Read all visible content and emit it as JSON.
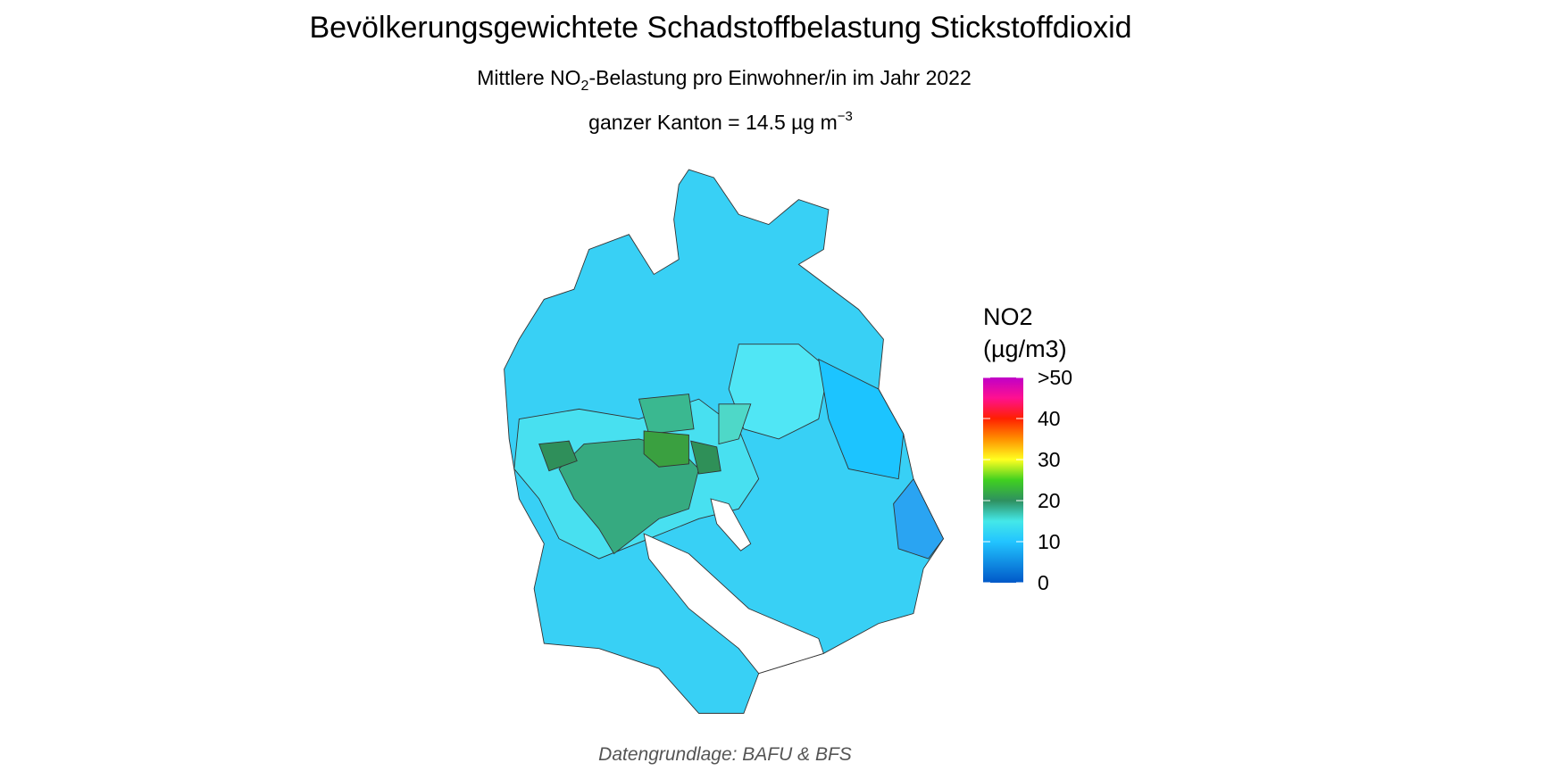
{
  "title": "Bevölkerungsgewichtete Schadstoffbelastung Stickstoffdioxid",
  "subtitle": {
    "before": "Mittlere NO",
    "sub": "2",
    "after": "-Belastung pro Einwohner/in im Jahr 2022"
  },
  "canton_line": {
    "text": "ganzer Kanton = 14.5 µg m",
    "sup": "−3"
  },
  "legend": {
    "title_line1": "NO2",
    "title_line2": "(µg/m3)",
    "range": [
      0,
      50
    ],
    "ticks": [
      0,
      10,
      20,
      30,
      40,
      {
        "value": 50,
        "label": ">50"
      }
    ]
  },
  "caption": "Datengrundlage: BAFU & BFS"
}
